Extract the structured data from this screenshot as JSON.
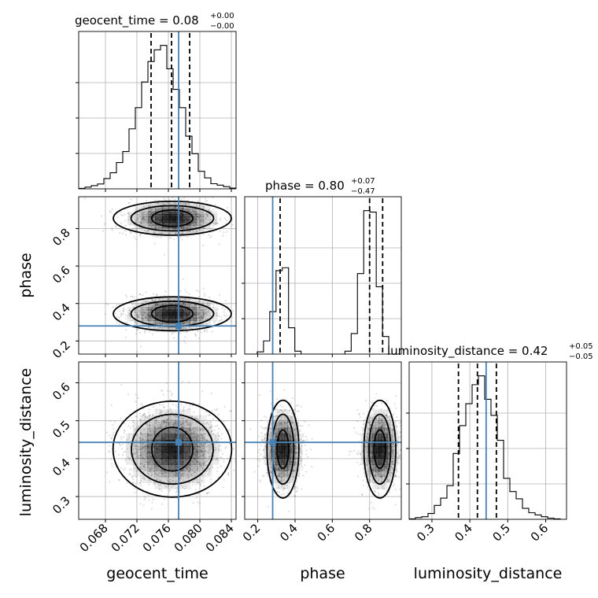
{
  "chart_data": {
    "type": "corner",
    "parameters": [
      "geocent_time",
      "phase",
      "luminosity_distance"
    ],
    "truths": {
      "geocent_time": 0.0773,
      "phase": 0.28,
      "luminosity_distance": 0.443
    },
    "ranges": {
      "geocent_time": [
        0.0646,
        0.0846
      ],
      "phase": [
        0.13,
        0.97
      ],
      "luminosity_distance": [
        0.24,
        0.655
      ]
    },
    "ticks": {
      "geocent_time": {
        "values": [
          0.068,
          0.072,
          0.076,
          0.08,
          0.084
        ],
        "labels": [
          "0.068",
          "0.072",
          "0.076",
          "0.080",
          "0.084"
        ]
      },
      "phase": {
        "values": [
          0.2,
          0.4,
          0.6,
          0.8
        ],
        "labels": [
          "0.2",
          "0.4",
          "0.6",
          "0.8"
        ]
      },
      "luminosity_distance": {
        "values": [
          0.3,
          0.4,
          0.5,
          0.6
        ],
        "labels": [
          "0.3",
          "0.4",
          "0.5",
          "0.6"
        ]
      }
    },
    "titles": [
      {
        "param": "geocent_time",
        "label": "geocent_time = 0.08",
        "plus": "+0.00",
        "minus": "−0.00"
      },
      {
        "param": "phase",
        "label": "phase = 0.80",
        "plus": "+0.07",
        "minus": "−0.47"
      },
      {
        "param": "luminosity_distance",
        "label": "luminosity_distance = 0.42",
        "plus": "+0.05",
        "minus": "−0.05"
      }
    ],
    "quantiles": {
      "geocent_time": [
        0.0738,
        0.0764,
        0.0787
      ],
      "phase": [
        0.32,
        0.8,
        0.87
      ],
      "luminosity_distance": [
        0.37,
        0.42,
        0.47
      ]
    },
    "histograms": {
      "geocent_time": {
        "edges": [
          0.0646,
          0.0654,
          0.0662,
          0.067,
          0.0678,
          0.0686,
          0.0694,
          0.0702,
          0.071,
          0.0718,
          0.0726,
          0.0734,
          0.0742,
          0.075,
          0.0758,
          0.0766,
          0.0774,
          0.0782,
          0.079,
          0.0798,
          0.0806,
          0.0814,
          0.0822,
          0.083,
          0.0838,
          0.0846
        ],
        "counts": [
          0.003,
          0.012,
          0.022,
          0.033,
          0.07,
          0.11,
          0.18,
          0.255,
          0.41,
          0.555,
          0.73,
          0.87,
          0.95,
          0.98,
          0.82,
          0.68,
          0.555,
          0.36,
          0.24,
          0.12,
          0.075,
          0.035,
          0.025,
          0.015,
          0.005
        ]
      },
      "phase": {
        "edges": [
          0.13,
          0.1636,
          0.1972,
          0.2308,
          0.2644,
          0.298,
          0.3316,
          0.3652,
          0.3988,
          0.4324,
          0.466,
          0.4996,
          0.5332,
          0.5668,
          0.6004,
          0.634,
          0.6676,
          0.7012,
          0.7348,
          0.7684,
          0.802,
          0.8356,
          0.8692,
          0.9028,
          0.9364,
          0.97
        ],
        "counts": [
          0.0,
          0.0,
          0.015,
          0.09,
          0.29,
          0.57,
          0.59,
          0.18,
          0.02,
          0.0,
          0.0,
          0.0,
          0.0,
          0.0,
          0.0,
          0.0,
          0.02,
          0.14,
          0.55,
          0.98,
          0.97,
          0.46,
          0.12,
          0.0,
          0.0
        ]
      },
      "luminosity_distance": {
        "edges": [
          0.24,
          0.2566,
          0.2732,
          0.2898,
          0.3064,
          0.323,
          0.3396,
          0.3562,
          0.3728,
          0.3894,
          0.406,
          0.4226,
          0.4392,
          0.4558,
          0.4724,
          0.489,
          0.5056,
          0.5222,
          0.5388,
          0.5554,
          0.572,
          0.5886,
          0.6052,
          0.6218,
          0.6384,
          0.655
        ],
        "counts": [
          0.003,
          0.012,
          0.018,
          0.04,
          0.095,
          0.145,
          0.23,
          0.45,
          0.64,
          0.79,
          0.92,
          0.98,
          0.82,
          0.71,
          0.54,
          0.28,
          0.19,
          0.14,
          0.075,
          0.045,
          0.03,
          0.018,
          0.008,
          0.003,
          0.0
        ]
      }
    },
    "pairs": [
      {
        "x": "geocent_time",
        "y": "phase",
        "modes": [
          {
            "cx": 0.0765,
            "cy": 0.855,
            "sx": 0.0025,
            "sy": 0.042,
            "weight": 0.5
          },
          {
            "cx": 0.0765,
            "cy": 0.345,
            "sx": 0.0025,
            "sy": 0.042,
            "weight": 0.5
          }
        ],
        "contour_levels": [
          {
            "kx": 1.05,
            "ky": 1.05
          },
          {
            "kx": 2.1,
            "ky": 1.6
          },
          {
            "kx": 3.0,
            "ky": 2.15
          }
        ]
      },
      {
        "x": "geocent_time",
        "y": "luminosity_distance",
        "modes": [
          {
            "cx": 0.0765,
            "cy": 0.425,
            "sx": 0.0026,
            "sy": 0.046,
            "weight": 1.0
          }
        ],
        "contour_levels": [
          {
            "kx": 1.0,
            "ky": 1.25
          },
          {
            "kx": 2.0,
            "ky": 2.0
          },
          {
            "kx": 2.9,
            "ky": 2.75
          }
        ]
      },
      {
        "x": "phase",
        "y": "luminosity_distance",
        "modes": [
          {
            "cx": 0.335,
            "cy": 0.425,
            "sx": 0.045,
            "sy": 0.046,
            "weight": 0.5
          },
          {
            "cx": 0.855,
            "cy": 0.425,
            "sx": 0.045,
            "sy": 0.046,
            "weight": 0.5
          }
        ],
        "contour_levels": [
          {
            "kx": 0.7,
            "ky": 1.1
          },
          {
            "kx": 1.3,
            "ky": 2.0
          },
          {
            "kx": 1.9,
            "ky": 2.8
          }
        ]
      }
    ]
  }
}
